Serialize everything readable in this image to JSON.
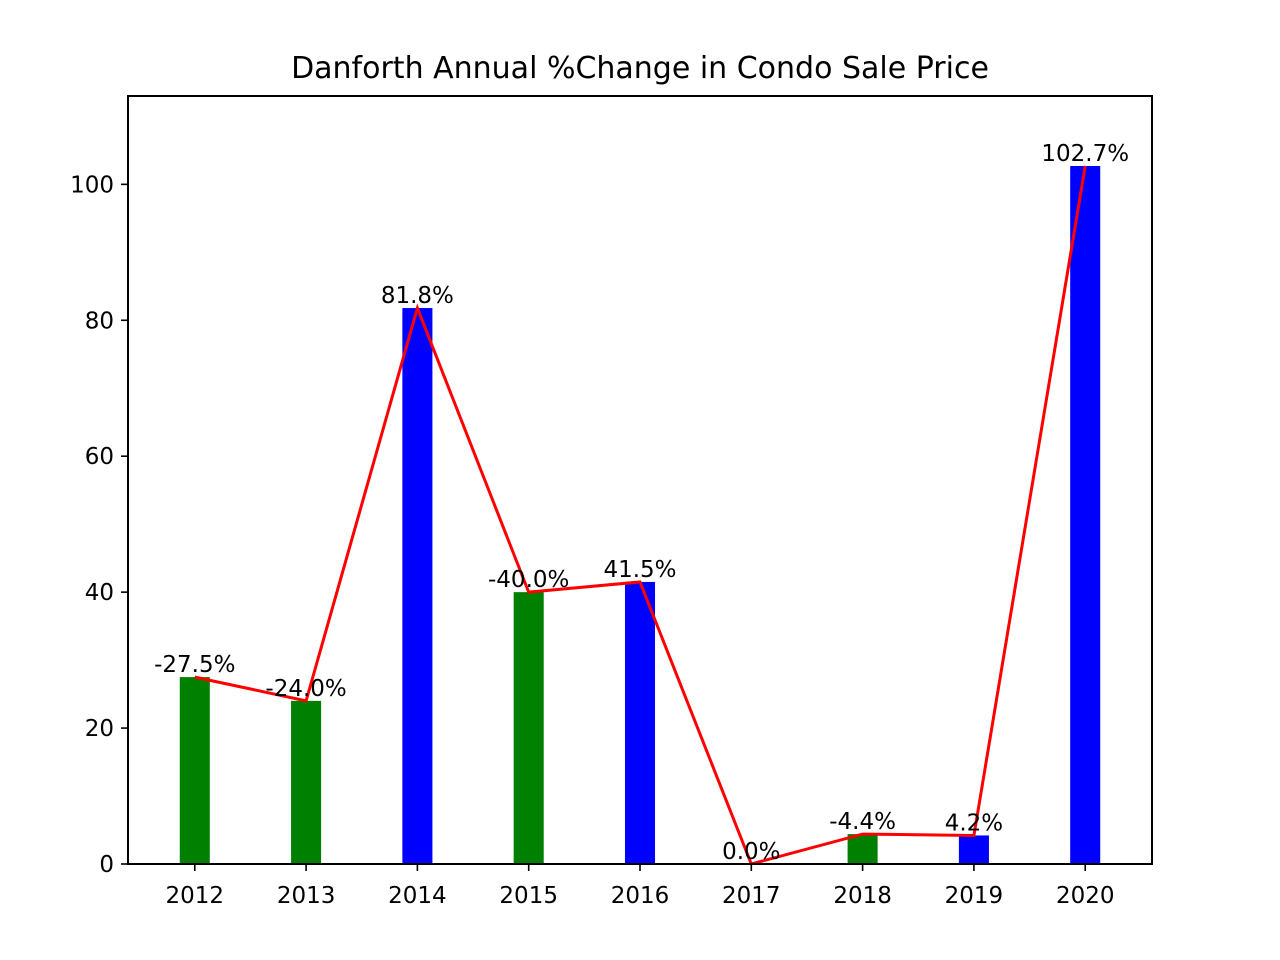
{
  "chart_data": {
    "type": "bar",
    "title": "Danforth Annual %Change in Condo Sale Price",
    "xlabel": "",
    "ylabel": "",
    "categories": [
      "2012",
      "2013",
      "2014",
      "2015",
      "2016",
      "2017",
      "2018",
      "2019",
      "2020"
    ],
    "values": [
      27.5,
      24.0,
      81.8,
      40.0,
      41.5,
      0.0,
      4.4,
      4.2,
      102.7
    ],
    "data_labels": [
      "-27.5%",
      "-24.0%",
      "81.8%",
      "-40.0%",
      "41.5%",
      "0.0%",
      "-4.4%",
      "4.2%",
      "102.7%"
    ],
    "bar_colors": [
      "#008000",
      "#008000",
      "#0000ff",
      "#008000",
      "#0000ff",
      "#0000ff",
      "#008000",
      "#0000ff",
      "#0000ff"
    ],
    "line_color": "#ff0000",
    "overlay_line": "same values connected across bars",
    "ylim": [
      0,
      113
    ],
    "yticks": [
      0,
      20,
      40,
      60,
      80,
      100
    ],
    "grid": false,
    "legend": "none"
  }
}
